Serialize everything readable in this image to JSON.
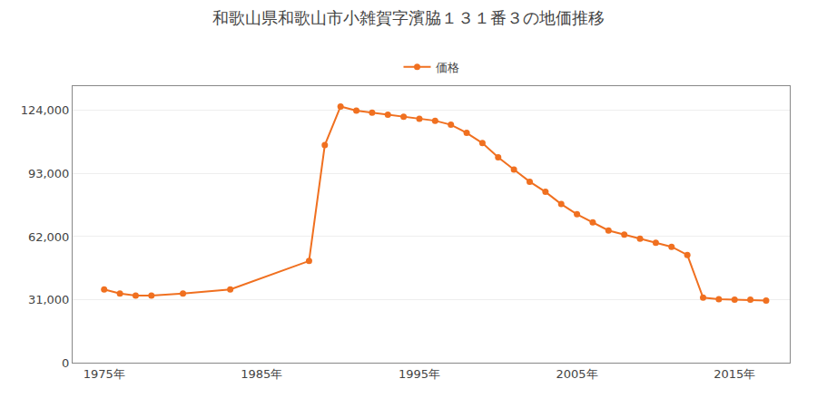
{
  "chart_data": {
    "type": "line",
    "title": "和歌山県和歌山市小雑賀字濱脇１３１番３の地価推移",
    "x": [
      1975,
      1976,
      1977,
      1978,
      1980,
      1983,
      1988,
      1989,
      1990,
      1991,
      1992,
      1993,
      1994,
      1995,
      1996,
      1997,
      1998,
      1999,
      2000,
      2001,
      2002,
      2003,
      2004,
      2005,
      2006,
      2007,
      2008,
      2009,
      2010,
      2011,
      2012,
      2013,
      2014,
      2015,
      2016,
      2017
    ],
    "series": [
      {
        "name": "価格",
        "color": "#f07020",
        "marker": "circle",
        "values": [
          36000,
          34000,
          33000,
          33000,
          34000,
          36000,
          50000,
          107000,
          126000,
          124000,
          123000,
          122000,
          121000,
          120000,
          119000,
          117000,
          113000,
          108000,
          101000,
          95000,
          89000,
          84000,
          78000,
          73000,
          69000,
          65000,
          63000,
          61000,
          59000,
          57000,
          53000,
          32000,
          31200,
          31000,
          31000,
          30500
        ]
      }
    ],
    "xlim": [
      1973,
      2018.5
    ],
    "xticks": [
      {
        "value": 1975,
        "label": "1975年"
      },
      {
        "value": 1985,
        "label": "1985年"
      },
      {
        "value": 1995,
        "label": "1995年"
      },
      {
        "value": 2005,
        "label": "2005年"
      },
      {
        "value": 2015,
        "label": "2015年"
      }
    ],
    "ylim": [
      0,
      136000
    ],
    "yticks": [
      0,
      {
        "value": 31000,
        "label": "31,000"
      },
      {
        "value": 62000,
        "label": "62,000"
      },
      {
        "value": 93000,
        "label": "93,000"
      },
      {
        "value": 124000,
        "label": "124,000"
      }
    ],
    "grid": "y",
    "legend": "top"
  }
}
